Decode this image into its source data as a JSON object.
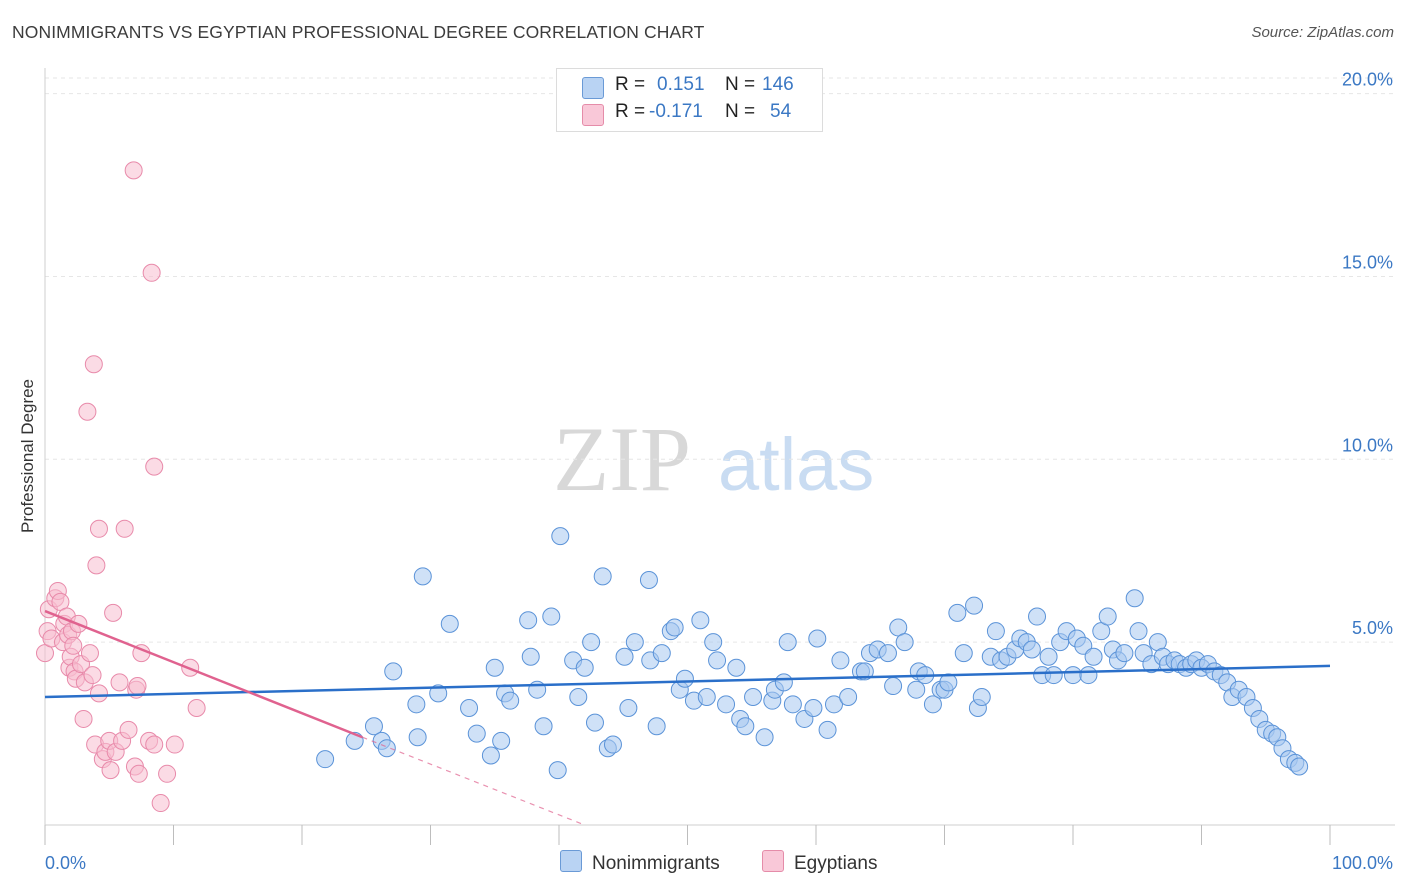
{
  "header": {
    "title": "NONIMMIGRANTS VS EGYPTIAN PROFESSIONAL DEGREE CORRELATION CHART",
    "source": "Source: ZipAtlas.com"
  },
  "watermark": {
    "zip": "ZIP",
    "atlas": "atlas"
  },
  "legend": {
    "rows": [
      {
        "r_label": "R =",
        "r_value": "0.151",
        "n_label": "N =",
        "n_value": "146"
      },
      {
        "r_label": "R =",
        "r_value": "-0.171",
        "n_label": "N =",
        "n_value": "54"
      }
    ]
  },
  "bottom_legend": {
    "series1": "Nonimmigrants",
    "series2": "Egyptians"
  },
  "colors": {
    "blue_fill": "#a8c8f0",
    "blue_stroke": "#5b93d8",
    "blue_line": "#2a6fc9",
    "pink_fill": "#f7bdd0",
    "pink_stroke": "#e88aaa",
    "pink_line": "#e0628f",
    "axis_text": "#3b78c4",
    "grid": "#e6e6e6"
  },
  "chart_data": {
    "type": "scatter",
    "title": "NONIMMIGRANTS VS EGYPTIAN PROFESSIONAL DEGREE CORRELATION CHART",
    "xlabel": "",
    "ylabel": "Professional Degree",
    "xlim": [
      0,
      100
    ],
    "ylim": [
      0,
      20.7
    ],
    "x_tick_labels": [
      {
        "value": 0,
        "label": "0.0%"
      },
      {
        "value": 100,
        "label": "100.0%"
      }
    ],
    "y_ticks": [
      {
        "value": 5,
        "label": "5.0%"
      },
      {
        "value": 10,
        "label": "10.0%"
      },
      {
        "value": 15,
        "label": "15.0%"
      },
      {
        "value": 20,
        "label": "20.0%"
      }
    ],
    "x_minor_ticks": [
      0,
      10,
      20,
      30,
      40,
      50,
      60,
      70,
      80,
      90,
      100
    ],
    "series": [
      {
        "name": "Nonimmigrants",
        "trend": {
          "x1": 0,
          "y1": 3.5,
          "x2": 100,
          "y2": 4.35
        },
        "points": [
          [
            21.8,
            1.8
          ],
          [
            24.1,
            2.3
          ],
          [
            25.6,
            2.7
          ],
          [
            26.2,
            2.3
          ],
          [
            26.6,
            2.1
          ],
          [
            27.1,
            4.2
          ],
          [
            28.9,
            3.3
          ],
          [
            29.0,
            2.4
          ],
          [
            29.4,
            6.8
          ],
          [
            30.6,
            3.6
          ],
          [
            31.5,
            5.5
          ],
          [
            33.0,
            3.2
          ],
          [
            33.6,
            2.5
          ],
          [
            34.7,
            1.9
          ],
          [
            35.0,
            4.3
          ],
          [
            35.5,
            2.3
          ],
          [
            35.8,
            3.6
          ],
          [
            36.2,
            3.4
          ],
          [
            37.6,
            5.6
          ],
          [
            37.8,
            4.6
          ],
          [
            38.3,
            3.7
          ],
          [
            38.8,
            2.7
          ],
          [
            39.4,
            5.7
          ],
          [
            39.9,
            1.5
          ],
          [
            40.1,
            7.9
          ],
          [
            41.1,
            4.5
          ],
          [
            41.5,
            3.5
          ],
          [
            42.0,
            4.3
          ],
          [
            42.5,
            5.0
          ],
          [
            42.8,
            2.8
          ],
          [
            43.4,
            6.8
          ],
          [
            43.8,
            2.1
          ],
          [
            44.2,
            2.2
          ],
          [
            45.1,
            4.6
          ],
          [
            45.4,
            3.2
          ],
          [
            45.9,
            5.0
          ],
          [
            47.0,
            6.7
          ],
          [
            47.1,
            4.5
          ],
          [
            47.6,
            2.7
          ],
          [
            48.0,
            4.7
          ],
          [
            48.7,
            5.3
          ],
          [
            49.0,
            5.4
          ],
          [
            49.4,
            3.7
          ],
          [
            49.8,
            4.0
          ],
          [
            50.5,
            3.4
          ],
          [
            51.0,
            5.6
          ],
          [
            51.5,
            3.5
          ],
          [
            52.0,
            5.0
          ],
          [
            52.3,
            4.5
          ],
          [
            53.0,
            3.3
          ],
          [
            53.8,
            4.3
          ],
          [
            54.1,
            2.9
          ],
          [
            54.5,
            2.7
          ],
          [
            55.1,
            3.5
          ],
          [
            56.0,
            2.4
          ],
          [
            56.6,
            3.4
          ],
          [
            56.8,
            3.7
          ],
          [
            57.5,
            3.9
          ],
          [
            57.8,
            5.0
          ],
          [
            58.2,
            3.3
          ],
          [
            59.1,
            2.9
          ],
          [
            59.8,
            3.2
          ],
          [
            60.1,
            5.1
          ],
          [
            60.9,
            2.6
          ],
          [
            61.4,
            3.3
          ],
          [
            61.9,
            4.5
          ],
          [
            62.5,
            3.5
          ],
          [
            63.5,
            4.2
          ],
          [
            63.8,
            4.2
          ],
          [
            64.2,
            4.7
          ],
          [
            64.8,
            4.8
          ],
          [
            65.6,
            4.7
          ],
          [
            66.0,
            3.8
          ],
          [
            66.4,
            5.4
          ],
          [
            66.9,
            5.0
          ],
          [
            67.8,
            3.7
          ],
          [
            68.0,
            4.2
          ],
          [
            68.5,
            4.1
          ],
          [
            69.1,
            3.3
          ],
          [
            69.7,
            3.7
          ],
          [
            70.0,
            3.7
          ],
          [
            70.3,
            3.9
          ],
          [
            71.0,
            5.8
          ],
          [
            71.5,
            4.7
          ],
          [
            72.3,
            6.0
          ],
          [
            72.6,
            3.2
          ],
          [
            72.9,
            3.5
          ],
          [
            73.6,
            4.6
          ],
          [
            74.0,
            5.3
          ],
          [
            74.4,
            4.5
          ],
          [
            74.9,
            4.6
          ],
          [
            75.5,
            4.8
          ],
          [
            75.9,
            5.1
          ],
          [
            76.4,
            5.0
          ],
          [
            76.8,
            4.8
          ],
          [
            77.2,
            5.7
          ],
          [
            77.6,
            4.1
          ],
          [
            78.1,
            4.6
          ],
          [
            78.5,
            4.1
          ],
          [
            79.0,
            5.0
          ],
          [
            79.5,
            5.3
          ],
          [
            80.0,
            4.1
          ],
          [
            80.3,
            5.1
          ],
          [
            80.8,
            4.9
          ],
          [
            81.2,
            4.1
          ],
          [
            81.6,
            4.6
          ],
          [
            82.2,
            5.3
          ],
          [
            82.7,
            5.7
          ],
          [
            83.1,
            4.8
          ],
          [
            83.5,
            4.5
          ],
          [
            84.0,
            4.7
          ],
          [
            84.8,
            6.2
          ],
          [
            85.1,
            5.3
          ],
          [
            85.5,
            4.7
          ],
          [
            86.1,
            4.4
          ],
          [
            86.6,
            5.0
          ],
          [
            87.0,
            4.6
          ],
          [
            87.4,
            4.4
          ],
          [
            87.9,
            4.5
          ],
          [
            88.3,
            4.4
          ],
          [
            88.8,
            4.3
          ],
          [
            89.2,
            4.4
          ],
          [
            89.6,
            4.5
          ],
          [
            90.0,
            4.3
          ],
          [
            90.5,
            4.4
          ],
          [
            91.0,
            4.2
          ],
          [
            91.5,
            4.1
          ],
          [
            92.0,
            3.9
          ],
          [
            92.4,
            3.5
          ],
          [
            92.9,
            3.7
          ],
          [
            93.5,
            3.5
          ],
          [
            94.0,
            3.2
          ],
          [
            94.5,
            2.9
          ],
          [
            95.0,
            2.6
          ],
          [
            95.5,
            2.5
          ],
          [
            95.9,
            2.4
          ],
          [
            96.3,
            2.1
          ],
          [
            96.8,
            1.8
          ],
          [
            97.3,
            1.7
          ],
          [
            97.6,
            1.6
          ]
        ]
      },
      {
        "name": "Egyptians",
        "trend": {
          "x1": 0,
          "y1": 5.85,
          "x2": 24.7,
          "y2": 2.4,
          "dash_x2": 42,
          "dash_y2": 0
        },
        "points": [
          [
            0.0,
            4.7
          ],
          [
            0.2,
            5.3
          ],
          [
            0.3,
            5.9
          ],
          [
            0.5,
            5.1
          ],
          [
            0.8,
            6.2
          ],
          [
            1.0,
            6.4
          ],
          [
            1.2,
            6.1
          ],
          [
            1.4,
            5.0
          ],
          [
            1.5,
            5.5
          ],
          [
            1.7,
            5.7
          ],
          [
            1.8,
            5.2
          ],
          [
            1.9,
            4.3
          ],
          [
            2.0,
            4.6
          ],
          [
            2.1,
            5.3
          ],
          [
            2.2,
            4.9
          ],
          [
            2.3,
            4.2
          ],
          [
            2.4,
            4.0
          ],
          [
            2.6,
            5.5
          ],
          [
            2.8,
            4.4
          ],
          [
            3.0,
            2.9
          ],
          [
            3.1,
            3.9
          ],
          [
            3.3,
            11.3
          ],
          [
            3.5,
            4.7
          ],
          [
            3.7,
            4.1
          ],
          [
            3.9,
            2.2
          ],
          [
            4.0,
            7.1
          ],
          [
            4.2,
            3.6
          ],
          [
            4.5,
            1.8
          ],
          [
            4.7,
            2.0
          ],
          [
            5.0,
            2.3
          ],
          [
            5.3,
            5.8
          ],
          [
            5.5,
            2.0
          ],
          [
            5.8,
            3.9
          ],
          [
            6.0,
            2.3
          ],
          [
            6.2,
            8.1
          ],
          [
            6.5,
            2.6
          ],
          [
            7.0,
            1.6
          ],
          [
            7.1,
            3.7
          ],
          [
            7.3,
            1.4
          ],
          [
            7.5,
            4.7
          ],
          [
            8.1,
            2.3
          ],
          [
            8.5,
            2.2
          ],
          [
            5.1,
            1.5
          ],
          [
            6.9,
            17.9
          ],
          [
            7.2,
            3.8
          ],
          [
            8.3,
            15.1
          ],
          [
            9.0,
            0.6
          ],
          [
            9.5,
            1.4
          ],
          [
            10.1,
            2.2
          ],
          [
            11.8,
            3.2
          ],
          [
            3.8,
            12.6
          ],
          [
            4.2,
            8.1
          ],
          [
            8.5,
            9.8
          ],
          [
            11.3,
            4.3
          ]
        ]
      }
    ]
  }
}
